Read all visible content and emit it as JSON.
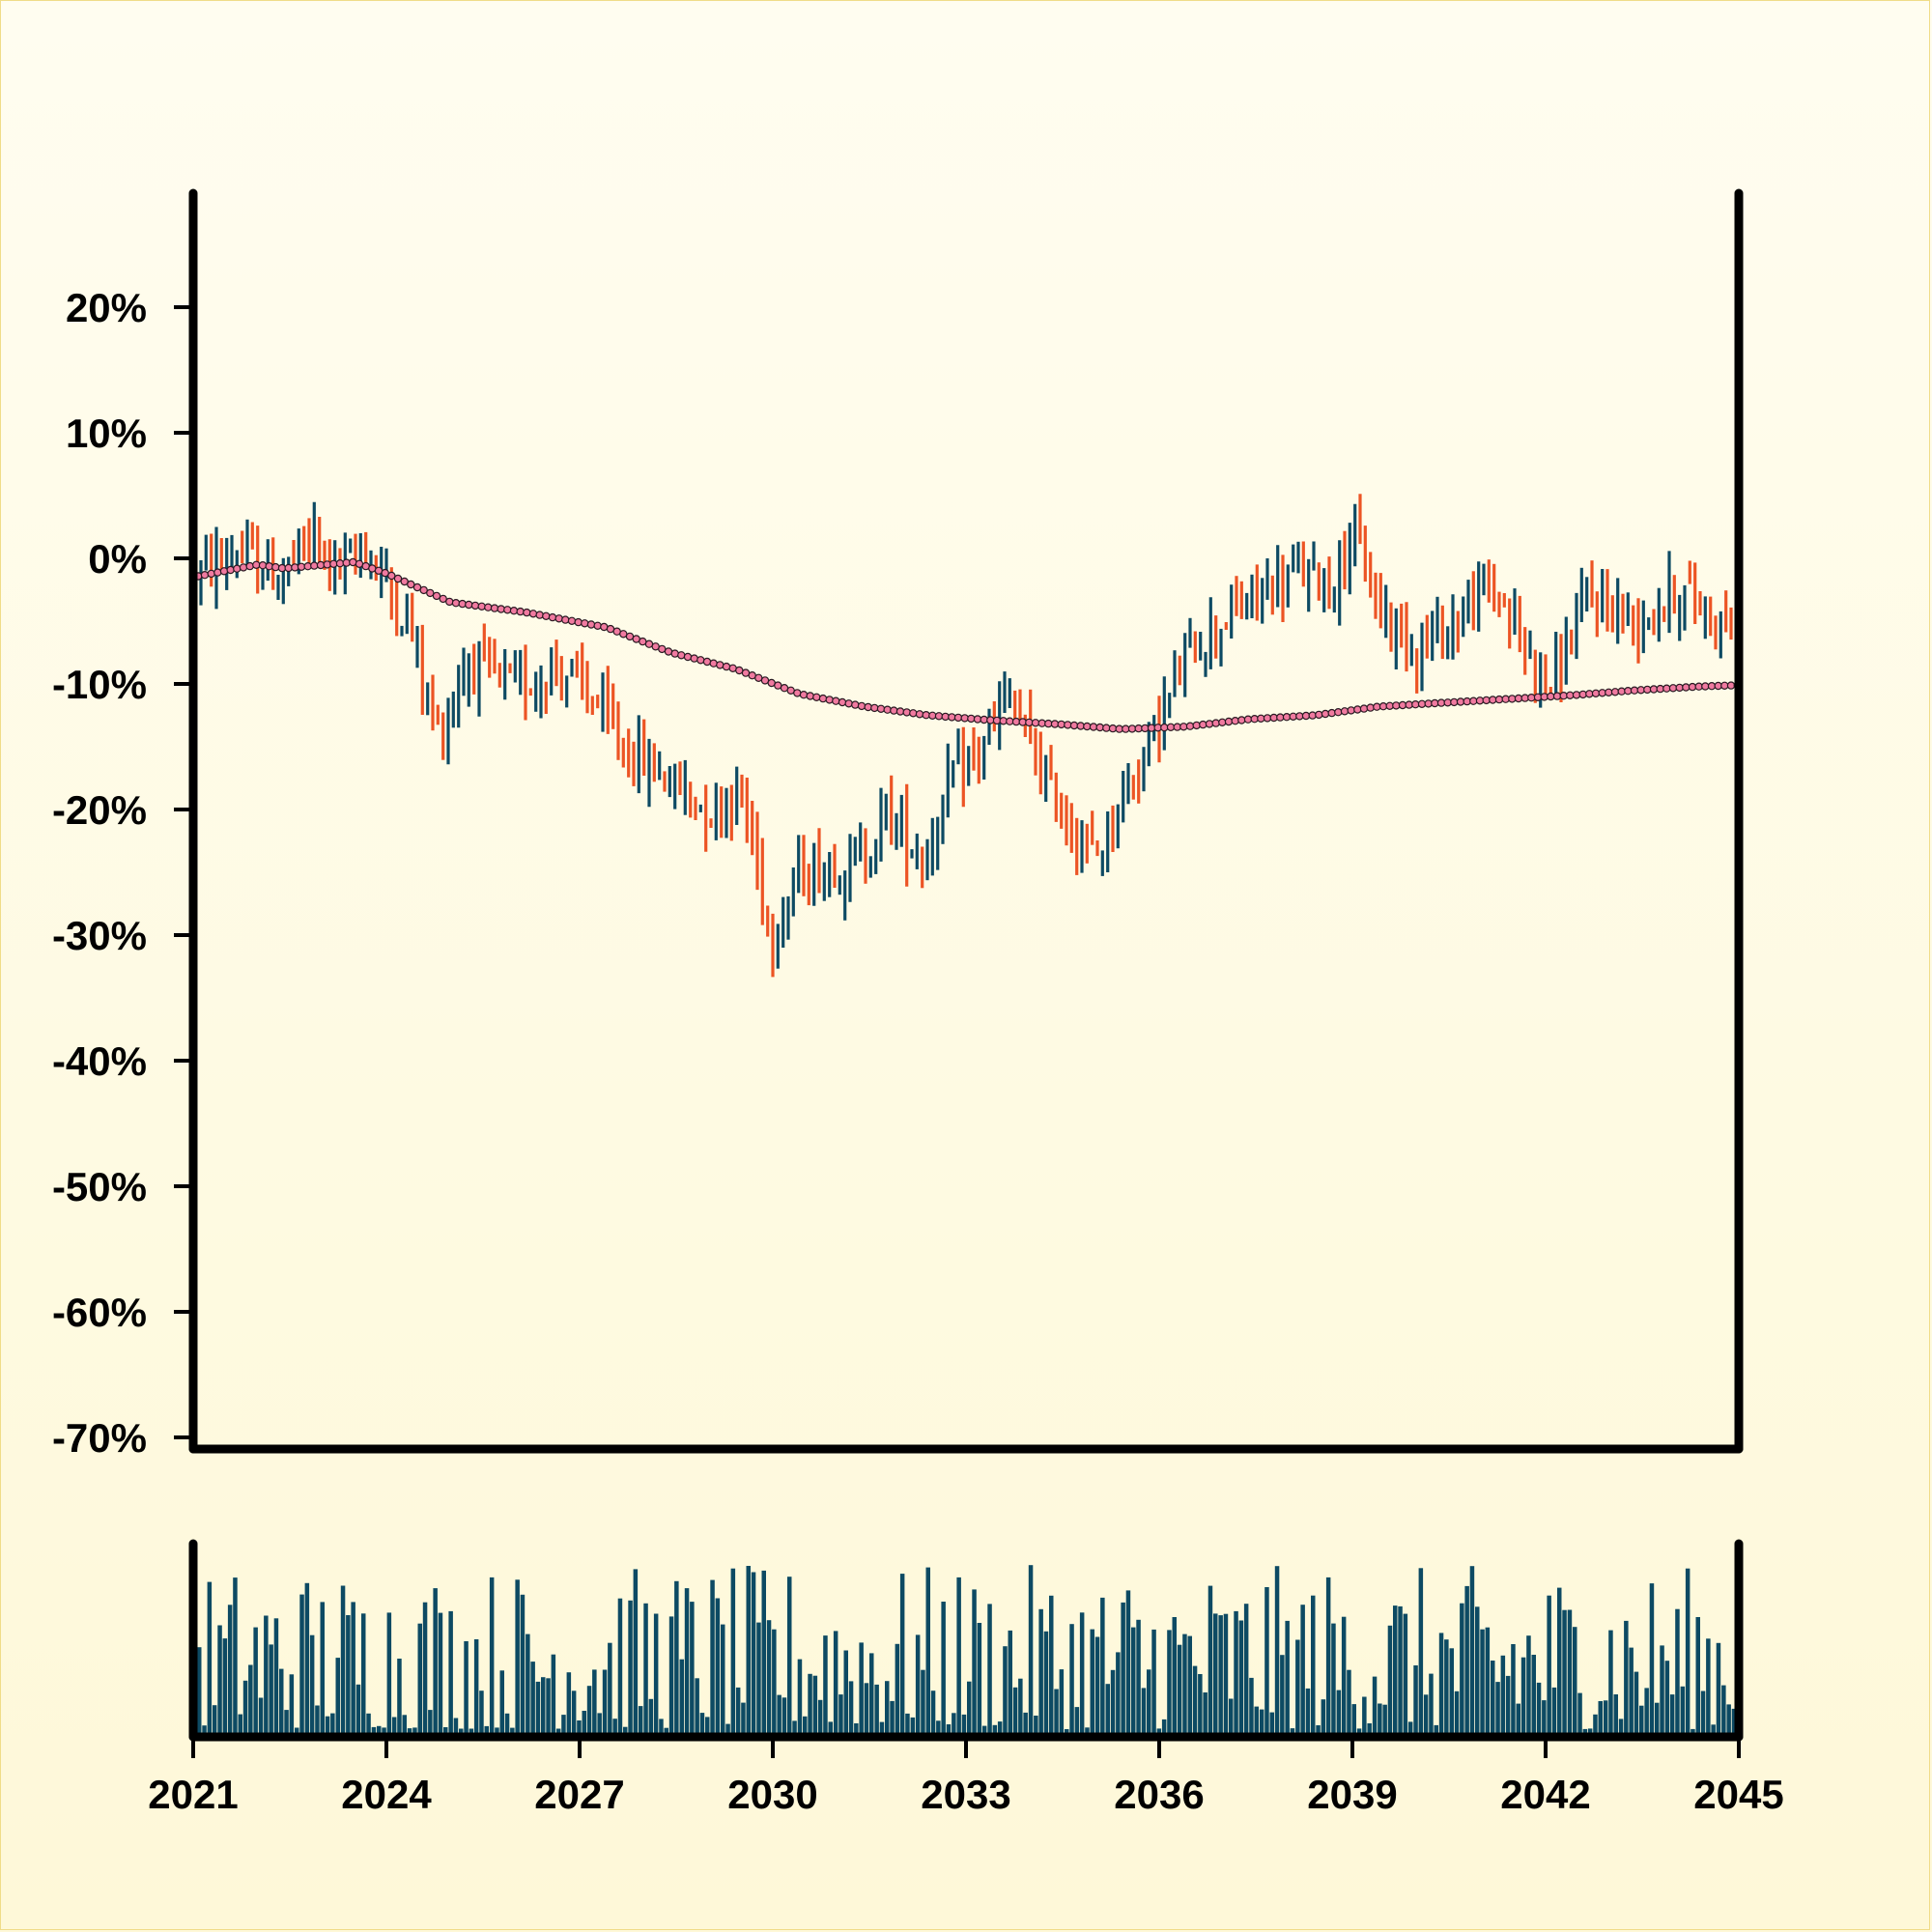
{
  "chart_data": {
    "type": "ohlc",
    "title": "",
    "xlabel": "",
    "ylabel": "",
    "y_unit": "%",
    "ylim": [
      -70,
      28
    ],
    "xlim": [
      "2021-01",
      "2045-01"
    ],
    "y_ticks": [
      "20%",
      "10%",
      "0%",
      "-10%",
      "-20%",
      "-30%",
      "-40%",
      "-50%",
      "-60%",
      "-70%"
    ],
    "x_ticks": [
      "2021",
      "2024",
      "2027",
      "2030",
      "2033",
      "2036",
      "2039",
      "2042",
      "2045"
    ],
    "grid": false,
    "legend": "none",
    "colors": {
      "up": "#0d4a63",
      "down": "#ec5424",
      "moving_average": "#f07aa0",
      "volume": "#0d4a63",
      "axes": "#000000"
    },
    "price_path": [
      {
        "x": "2021-01",
        "y": -1.5
      },
      {
        "x": "2021-09",
        "y": 0.5
      },
      {
        "x": "2022-05",
        "y": -1.5
      },
      {
        "x": "2022-11",
        "y": 1.5
      },
      {
        "x": "2023-05",
        "y": -1.0
      },
      {
        "x": "2023-09",
        "y": 1.0
      },
      {
        "x": "2024-06",
        "y": -6.0
      },
      {
        "x": "2024-09",
        "y": -12.0
      },
      {
        "x": "2024-11",
        "y": -14.0
      },
      {
        "x": "2025-04",
        "y": -8.0
      },
      {
        "x": "2026-01",
        "y": -10.5
      },
      {
        "x": "2026-09",
        "y": -8.5
      },
      {
        "x": "2027-03",
        "y": -11.0
      },
      {
        "x": "2027-09",
        "y": -15.0
      },
      {
        "x": "2028-07",
        "y": -18.0
      },
      {
        "x": "2029-01",
        "y": -20.0
      },
      {
        "x": "2029-07",
        "y": -18.5
      },
      {
        "x": "2030-01",
        "y": -30.0
      },
      {
        "x": "2030-06",
        "y": -25.0
      },
      {
        "x": "2031-06",
        "y": -24.0
      },
      {
        "x": "2031-10",
        "y": -20.0
      },
      {
        "x": "2032-05",
        "y": -24.0
      },
      {
        "x": "2032-10",
        "y": -18.0
      },
      {
        "x": "2033-04",
        "y": -15.0
      },
      {
        "x": "2033-09",
        "y": -11.0
      },
      {
        "x": "2034-03",
        "y": -17.0
      },
      {
        "x": "2034-08",
        "y": -21.0
      },
      {
        "x": "2035-01",
        "y": -24.0
      },
      {
        "x": "2035-06",
        "y": -19.0
      },
      {
        "x": "2036-01",
        "y": -13.0
      },
      {
        "x": "2036-07",
        "y": -7.0
      },
      {
        "x": "2037-07",
        "y": -3.0
      },
      {
        "x": "2038-03",
        "y": -1.0
      },
      {
        "x": "2038-09",
        "y": -2.0
      },
      {
        "x": "2039-01",
        "y": 2.0
      },
      {
        "x": "2039-06",
        "y": -4.0
      },
      {
        "x": "2040-01",
        "y": -7.0
      },
      {
        "x": "2040-08",
        "y": -5.0
      },
      {
        "x": "2041-03",
        "y": -2.0
      },
      {
        "x": "2041-09",
        "y": -7.0
      },
      {
        "x": "2042-02",
        "y": -10.0
      },
      {
        "x": "2042-09",
        "y": -3.0
      },
      {
        "x": "2043-06",
        "y": -5.0
      },
      {
        "x": "2044-02",
        "y": -2.5
      },
      {
        "x": "2045-01",
        "y": -6.0
      }
    ],
    "moving_average": [
      {
        "x": "2021-01",
        "y": -1.5
      },
      {
        "x": "2022-01",
        "y": -0.5
      },
      {
        "x": "2022-06",
        "y": -0.8
      },
      {
        "x": "2023-07",
        "y": -0.3
      },
      {
        "x": "2024-01",
        "y": -1.2
      },
      {
        "x": "2025-01",
        "y": -3.5
      },
      {
        "x": "2026-03",
        "y": -4.3
      },
      {
        "x": "2027-06",
        "y": -5.5
      },
      {
        "x": "2028-06",
        "y": -7.5
      },
      {
        "x": "2029-06",
        "y": -8.8
      },
      {
        "x": "2030-06",
        "y": -10.8
      },
      {
        "x": "2031-06",
        "y": -11.8
      },
      {
        "x": "2032-06",
        "y": -12.5
      },
      {
        "x": "2033-06",
        "y": -12.9
      },
      {
        "x": "2034-06",
        "y": -13.2
      },
      {
        "x": "2035-06",
        "y": -13.6
      },
      {
        "x": "2036-06",
        "y": -13.4
      },
      {
        "x": "2037-06",
        "y": -12.8
      },
      {
        "x": "2038-06",
        "y": -12.5
      },
      {
        "x": "2039-06",
        "y": -11.8
      },
      {
        "x": "2040-06",
        "y": -11.5
      },
      {
        "x": "2041-06",
        "y": -11.2
      },
      {
        "x": "2042-06",
        "y": -10.9
      },
      {
        "x": "2043-06",
        "y": -10.5
      },
      {
        "x": "2044-06",
        "y": -10.2
      },
      {
        "x": "2045-01",
        "y": -10.1
      }
    ]
  }
}
